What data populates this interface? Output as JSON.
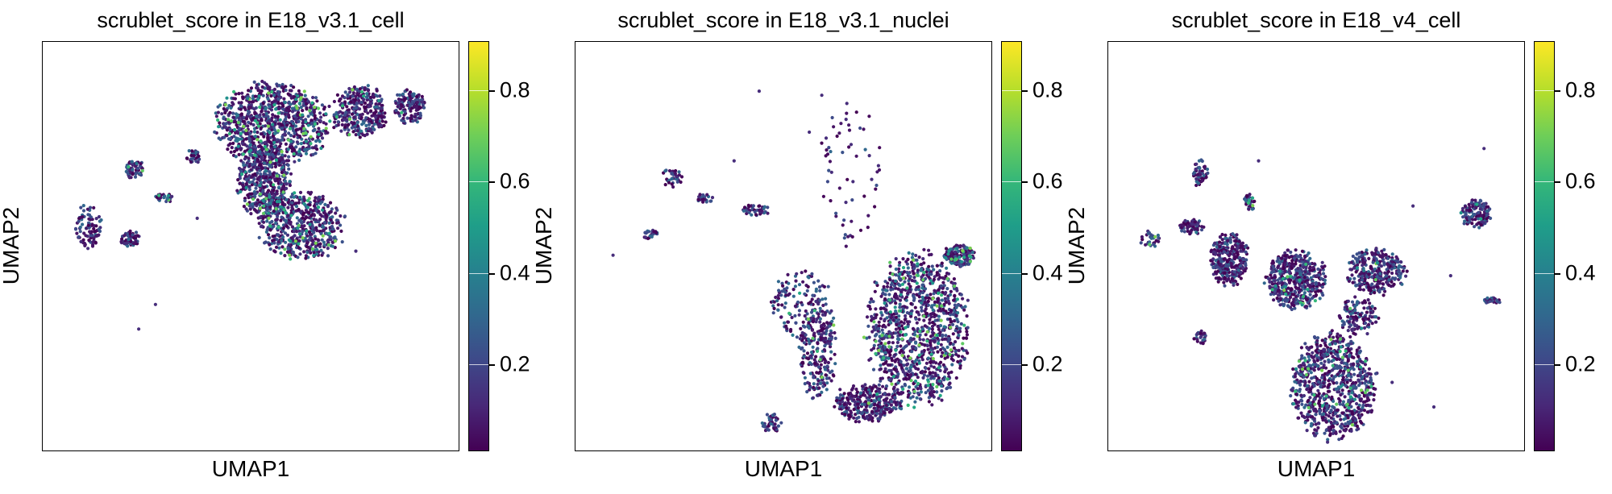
{
  "chart_data": [
    {
      "type": "scatter",
      "title": "scrublet_score in E18_v3.1_cell",
      "xlabel": "UMAP1",
      "ylabel": "UMAP2",
      "colorbar": {
        "range": [
          0.0,
          0.9
        ],
        "ticks": [
          "0.2",
          "0.4",
          "0.6",
          "0.8"
        ],
        "colormap": "viridis"
      },
      "blobs": [
        {
          "cx": 0.55,
          "cy": 0.8,
          "rx": 0.15,
          "ry": 0.11,
          "n": 900,
          "hot": 0.12
        },
        {
          "cx": 0.53,
          "cy": 0.66,
          "rx": 0.07,
          "ry": 0.1,
          "n": 500,
          "hot": 0.05
        },
        {
          "cx": 0.62,
          "cy": 0.55,
          "rx": 0.11,
          "ry": 0.09,
          "n": 520,
          "hot": 0.08
        },
        {
          "cx": 0.76,
          "cy": 0.83,
          "rx": 0.07,
          "ry": 0.07,
          "n": 320,
          "hot": 0.03
        },
        {
          "cx": 0.88,
          "cy": 0.84,
          "rx": 0.04,
          "ry": 0.05,
          "n": 140,
          "hot": 0.02
        },
        {
          "cx": 0.36,
          "cy": 0.72,
          "rx": 0.02,
          "ry": 0.02,
          "n": 30,
          "hot": 0.0
        },
        {
          "cx": 0.22,
          "cy": 0.69,
          "rx": 0.025,
          "ry": 0.025,
          "n": 60,
          "hot": 0.05
        },
        {
          "cx": 0.29,
          "cy": 0.62,
          "rx": 0.025,
          "ry": 0.012,
          "n": 25,
          "hot": 0.1
        },
        {
          "cx": 0.21,
          "cy": 0.52,
          "rx": 0.03,
          "ry": 0.02,
          "n": 60,
          "hot": 0.0
        },
        {
          "cx": 0.11,
          "cy": 0.55,
          "rx": 0.035,
          "ry": 0.06,
          "n": 90,
          "hot": 0.0
        }
      ],
      "stragglers": [
        [
          0.27,
          0.36
        ],
        [
          0.23,
          0.3
        ],
        [
          0.37,
          0.57
        ],
        [
          0.75,
          0.49
        ]
      ]
    },
    {
      "type": "scatter",
      "title": "scrublet_score in E18_v3.1_nuclei",
      "xlabel": "UMAP1",
      "ylabel": "UMAP2",
      "colorbar": {
        "range": [
          0.0,
          0.9
        ],
        "ticks": [
          "0.2",
          "0.4",
          "0.6",
          "0.8"
        ],
        "colormap": "viridis"
      },
      "blobs": [
        {
          "cx": 0.82,
          "cy": 0.3,
          "rx": 0.13,
          "ry": 0.2,
          "n": 1100,
          "hot": 0.08
        },
        {
          "cx": 0.7,
          "cy": 0.12,
          "rx": 0.09,
          "ry": 0.05,
          "n": 300,
          "hot": 0.02
        },
        {
          "cx": 0.58,
          "cy": 0.25,
          "rx": 0.05,
          "ry": 0.13,
          "n": 250,
          "hot": 0.03
        },
        {
          "cx": 0.92,
          "cy": 0.48,
          "rx": 0.04,
          "ry": 0.03,
          "n": 160,
          "hot": 0.15
        },
        {
          "cx": 0.54,
          "cy": 0.36,
          "rx": 0.08,
          "ry": 0.1,
          "n": 120,
          "hot": 0.02
        },
        {
          "cx": 0.47,
          "cy": 0.07,
          "rx": 0.025,
          "ry": 0.025,
          "n": 40,
          "hot": 0.0
        },
        {
          "cx": 0.43,
          "cy": 0.59,
          "rx": 0.04,
          "ry": 0.015,
          "n": 40,
          "hot": 0.0
        },
        {
          "cx": 0.31,
          "cy": 0.62,
          "rx": 0.02,
          "ry": 0.015,
          "n": 22,
          "hot": 0.0
        },
        {
          "cx": 0.23,
          "cy": 0.67,
          "rx": 0.03,
          "ry": 0.025,
          "n": 35,
          "hot": 0.0
        },
        {
          "cx": 0.18,
          "cy": 0.53,
          "rx": 0.02,
          "ry": 0.015,
          "n": 25,
          "hot": 0.0
        },
        {
          "cx": 0.66,
          "cy": 0.68,
          "rx": 0.08,
          "ry": 0.2,
          "n": 60,
          "hot": 0.0
        }
      ],
      "stragglers": [
        [
          0.44,
          0.88
        ],
        [
          0.59,
          0.87
        ],
        [
          0.65,
          0.85
        ],
        [
          0.09,
          0.48
        ],
        [
          0.38,
          0.71
        ],
        [
          0.56,
          0.78
        ],
        [
          0.94,
          0.37
        ]
      ]
    },
    {
      "type": "scatter",
      "title": "scrublet_score in E18_v4_cell",
      "xlabel": "UMAP1",
      "ylabel": "UMAP2",
      "colorbar": {
        "range": [
          0.0,
          0.9
        ],
        "ticks": [
          "0.2",
          "0.4",
          "0.6",
          "0.8"
        ],
        "colormap": "viridis"
      },
      "blobs": [
        {
          "cx": 0.54,
          "cy": 0.16,
          "rx": 0.11,
          "ry": 0.14,
          "n": 800,
          "hot": 0.05
        },
        {
          "cx": 0.45,
          "cy": 0.42,
          "rx": 0.08,
          "ry": 0.08,
          "n": 480,
          "hot": 0.06
        },
        {
          "cx": 0.29,
          "cy": 0.47,
          "rx": 0.05,
          "ry": 0.07,
          "n": 320,
          "hot": 0.0
        },
        {
          "cx": 0.64,
          "cy": 0.44,
          "rx": 0.08,
          "ry": 0.06,
          "n": 300,
          "hot": 0.03
        },
        {
          "cx": 0.6,
          "cy": 0.33,
          "rx": 0.05,
          "ry": 0.05,
          "n": 120,
          "hot": 0.02
        },
        {
          "cx": 0.88,
          "cy": 0.58,
          "rx": 0.04,
          "ry": 0.04,
          "n": 120,
          "hot": 0.03
        },
        {
          "cx": 0.22,
          "cy": 0.68,
          "rx": 0.02,
          "ry": 0.035,
          "n": 55,
          "hot": 0.0
        },
        {
          "cx": 0.34,
          "cy": 0.61,
          "rx": 0.015,
          "ry": 0.025,
          "n": 35,
          "hot": 0.1
        },
        {
          "cx": 0.2,
          "cy": 0.55,
          "rx": 0.035,
          "ry": 0.02,
          "n": 60,
          "hot": 0.05
        },
        {
          "cx": 0.1,
          "cy": 0.52,
          "rx": 0.03,
          "ry": 0.02,
          "n": 30,
          "hot": 0.05
        },
        {
          "cx": 0.22,
          "cy": 0.28,
          "rx": 0.015,
          "ry": 0.02,
          "n": 30,
          "hot": 0.0
        },
        {
          "cx": 0.92,
          "cy": 0.37,
          "rx": 0.025,
          "ry": 0.008,
          "n": 25,
          "hot": 0.0
        }
      ],
      "stragglers": [
        [
          0.36,
          0.71
        ],
        [
          0.73,
          0.6
        ],
        [
          0.9,
          0.74
        ],
        [
          0.82,
          0.43
        ],
        [
          0.78,
          0.11
        ],
        [
          0.68,
          0.17
        ]
      ]
    }
  ]
}
